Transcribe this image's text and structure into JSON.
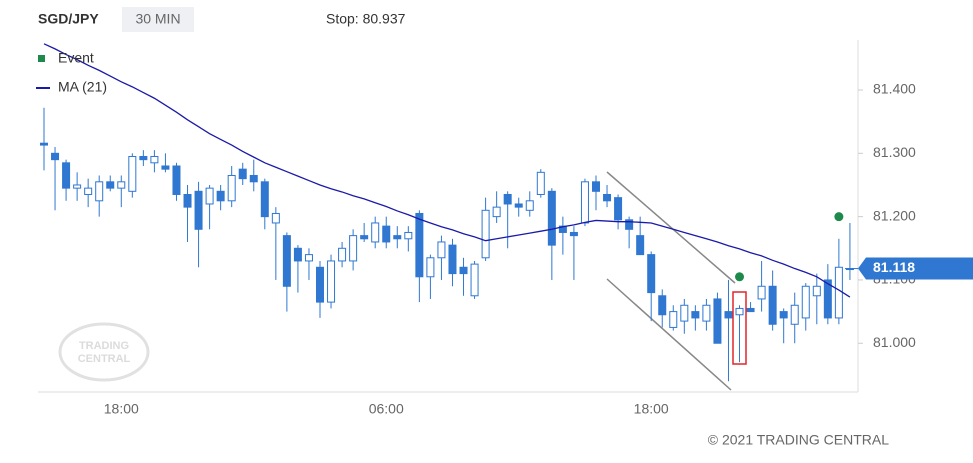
{
  "chart_data": {
    "type": "candlestick",
    "title": "SGD/JPY",
    "subtitle": "30 MIN",
    "annotation": "Stop: 80.937",
    "credit": "© 2021 TRADING CENTRAL",
    "watermark": [
      "TRADING",
      "CENTRAL"
    ],
    "categories": [
      null,
      null,
      null,
      null,
      null,
      null,
      null,
      "18:00",
      null,
      null,
      null,
      null,
      null,
      null,
      null,
      null,
      null,
      null,
      null,
      null,
      null,
      null,
      null,
      null,
      null,
      null,
      null,
      null,
      null,
      null,
      null,
      "06:00",
      null,
      null,
      null,
      null,
      null,
      null,
      null,
      null,
      null,
      null,
      null,
      null,
      null,
      null,
      null,
      null,
      null,
      null,
      null,
      null,
      null,
      null,
      null,
      "18:00",
      null,
      null,
      null,
      null,
      null,
      null,
      null,
      null,
      null,
      null,
      null,
      null,
      null,
      null,
      null,
      null,
      null,
      null
    ],
    "open": [
      81.316,
      81.3,
      81.285,
      81.245,
      81.235,
      81.225,
      81.255,
      81.245,
      81.24,
      81.295,
      81.285,
      81.28,
      81.28,
      81.235,
      81.24,
      81.22,
      81.24,
      81.225,
      81.275,
      81.265,
      81.255,
      81.19,
      81.17,
      81.15,
      81.13,
      81.12,
      81.065,
      81.13,
      81.13,
      81.17,
      81.16,
      81.185,
      81.17,
      81.165,
      81.205,
      81.105,
      81.135,
      81.155,
      81.12,
      81.075,
      81.135,
      81.2,
      81.235,
      81.22,
      81.21,
      81.235,
      81.24,
      81.185,
      81.175,
      81.19,
      81.255,
      81.235,
      81.23,
      81.195,
      81.17,
      81.14,
      81.075,
      81.025,
      81.035,
      81.05,
      81.035,
      81.07,
      81.05,
      81.045,
      81.055,
      81.07,
      81.09,
      81.05,
      81.03,
      81.04,
      81.075,
      81.1,
      81.04,
      81.118
    ],
    "high": [
      81.372,
      81.31,
      81.29,
      81.27,
      81.26,
      81.265,
      81.265,
      81.265,
      81.3,
      81.305,
      81.305,
      81.3,
      81.285,
      81.25,
      81.255,
      81.25,
      81.25,
      81.28,
      81.285,
      81.29,
      81.26,
      81.215,
      81.175,
      81.155,
      81.15,
      81.13,
      81.14,
      81.16,
      81.18,
      81.19,
      81.2,
      81.2,
      81.185,
      81.185,
      81.21,
      81.14,
      81.17,
      81.165,
      81.135,
      81.13,
      81.23,
      81.24,
      81.24,
      81.23,
      81.24,
      81.275,
      81.245,
      81.2,
      81.185,
      81.26,
      81.265,
      81.25,
      81.235,
      81.2,
      81.2,
      81.145,
      81.085,
      81.06,
      81.07,
      81.06,
      81.07,
      81.08,
      81.1,
      81.06,
      81.065,
      81.13,
      81.115,
      81.055,
      81.08,
      81.095,
      81.11,
      81.125,
      81.165,
      81.19
    ],
    "low": [
      81.273,
      81.21,
      81.225,
      81.225,
      81.215,
      81.2,
      81.24,
      81.215,
      81.23,
      81.28,
      81.27,
      81.27,
      81.225,
      81.16,
      81.12,
      81.18,
      81.21,
      81.215,
      81.25,
      81.24,
      81.18,
      81.1,
      81.05,
      81.08,
      81.1,
      81.04,
      81.055,
      81.12,
      81.115,
      81.16,
      81.15,
      81.15,
      81.15,
      81.145,
      81.065,
      81.07,
      81.1,
      81.09,
      81.075,
      81.07,
      81.13,
      81.19,
      81.15,
      81.2,
      81.2,
      81.23,
      81.1,
      81.14,
      81.1,
      81.185,
      81.21,
      81.215,
      81.18,
      81.15,
      81.14,
      81.035,
      81.025,
      81.02,
      81.015,
      81.02,
      81.02,
      81.0,
      80.94,
      80.97,
      81.05,
      81.05,
      81.02,
      81.0,
      81.0,
      81.02,
      81.03,
      81.03,
      81.03,
      81.1
    ],
    "close": [
      81.313,
      81.29,
      81.245,
      81.25,
      81.245,
      81.255,
      81.245,
      81.255,
      81.295,
      81.29,
      81.295,
      81.275,
      81.235,
      81.215,
      81.18,
      81.245,
      81.225,
      81.265,
      81.26,
      81.255,
      81.2,
      81.205,
      81.09,
      81.13,
      81.14,
      81.065,
      81.13,
      81.15,
      81.17,
      81.165,
      81.19,
      81.16,
      81.165,
      81.175,
      81.105,
      81.135,
      81.16,
      81.11,
      81.11,
      81.125,
      81.21,
      81.215,
      81.22,
      81.215,
      81.225,
      81.27,
      81.155,
      81.175,
      81.17,
      81.255,
      81.24,
      81.225,
      81.195,
      81.18,
      81.14,
      81.08,
      81.045,
      81.05,
      81.06,
      81.04,
      81.06,
      81.0,
      81.04,
      81.055,
      81.05,
      81.09,
      81.03,
      81.04,
      81.06,
      81.09,
      81.09,
      81.04,
      81.12,
      81.118
    ],
    "up_color": "#2f77d1",
    "down_color": "#2f77d1",
    "series": [
      {
        "name": "Event",
        "color": "#1d8a4c",
        "values": [
          null,
          null,
          null,
          null,
          null,
          null,
          null,
          null,
          null,
          null,
          null,
          null,
          null,
          null,
          null,
          null,
          null,
          null,
          null,
          null,
          null,
          null,
          null,
          null,
          null,
          null,
          null,
          null,
          null,
          null,
          null,
          null,
          null,
          null,
          null,
          null,
          null,
          null,
          null,
          null,
          null,
          null,
          null,
          null,
          null,
          null,
          null,
          null,
          null,
          null,
          null,
          null,
          null,
          null,
          null,
          null,
          null,
          null,
          null,
          null,
          null,
          null,
          null,
          81.105,
          null,
          null,
          null,
          null,
          null,
          null,
          null,
          null,
          81.2,
          null
        ]
      },
      {
        "name": "MA (21)",
        "color": "#1a1aa8",
        "values": [
          81.473,
          81.465,
          81.456,
          81.448,
          81.439,
          81.431,
          81.422,
          81.413,
          81.405,
          81.396,
          81.387,
          81.376,
          81.365,
          81.353,
          81.342,
          81.331,
          81.322,
          81.313,
          81.303,
          81.294,
          81.285,
          81.278,
          81.271,
          81.264,
          81.257,
          81.25,
          81.244,
          81.239,
          81.233,
          81.228,
          81.222,
          81.216,
          81.209,
          81.203,
          81.196,
          81.19,
          81.184,
          81.179,
          81.173,
          81.168,
          81.162,
          81.165,
          81.168,
          81.171,
          81.174,
          81.177,
          81.18,
          81.184,
          81.187,
          81.191,
          81.194,
          81.193,
          81.192,
          81.192,
          81.191,
          81.19,
          81.185,
          81.18,
          81.175,
          81.17,
          81.165,
          81.16,
          81.154,
          81.149,
          81.143,
          81.138,
          81.131,
          81.125,
          81.118,
          81.112,
          81.105,
          81.094,
          81.084,
          81.073
        ]
      }
    ],
    "last_price": 81.118,
    "ylim": [
      80.923,
      81.479
    ],
    "yticks": [
      {
        "value": 81.0,
        "label": "81.000"
      },
      {
        "value": 81.1,
        "label": "81.100"
      },
      {
        "value": 81.2,
        "label": "81.200"
      },
      {
        "value": 81.3,
        "label": "81.300"
      },
      {
        "value": 81.4,
        "label": "81.400"
      }
    ]
  }
}
